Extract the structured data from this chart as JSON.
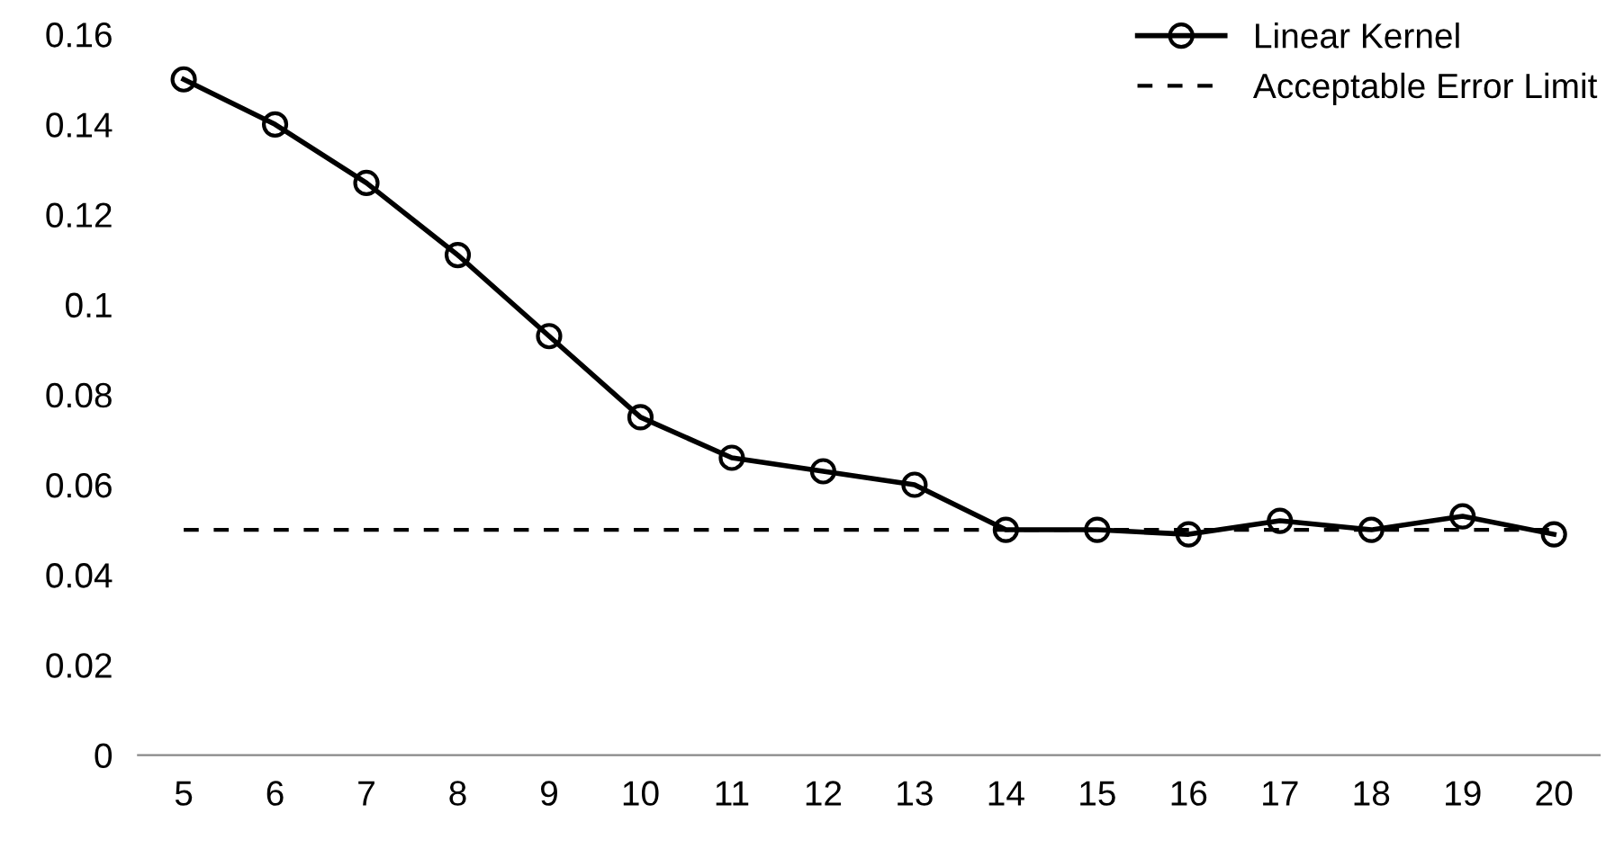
{
  "chart_data": {
    "type": "line",
    "categories": [
      "5",
      "6",
      "7",
      "8",
      "9",
      "10",
      "11",
      "12",
      "13",
      "14",
      "15",
      "16",
      "17",
      "18",
      "19",
      "20"
    ],
    "series": [
      {
        "name": "Linear Kernel",
        "color": "#000000",
        "values": [
          0.15,
          0.14,
          0.127,
          0.111,
          0.093,
          0.075,
          0.066,
          0.063,
          0.06,
          0.05,
          0.05,
          0.049,
          0.052,
          0.05,
          0.053,
          0.049
        ]
      }
    ],
    "ref_lines": [
      {
        "axis": "y",
        "value": 0.05,
        "label": "Acceptable Error Limit",
        "color": "#000000",
        "line_style": "dashed"
      }
    ],
    "ylim": [
      0,
      0.16
    ],
    "yticks": [
      0,
      0.02,
      0.04,
      0.06,
      0.08,
      0.1,
      0.12,
      0.14,
      0.16
    ],
    "marker": "circle",
    "line_style": "solid",
    "grid": false,
    "legend": "top right"
  }
}
